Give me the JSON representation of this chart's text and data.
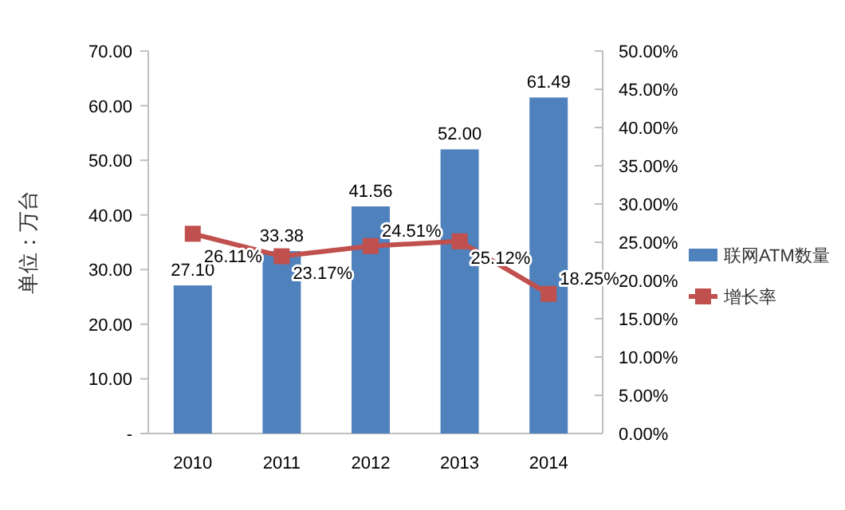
{
  "chart_data": {
    "type": "bar",
    "ylabel": "单位：万台",
    "categories": [
      "2010",
      "2011",
      "2012",
      "2013",
      "2014"
    ],
    "series": [
      {
        "name": "联网ATM数量",
        "color": "#4f81bd",
        "values": [
          27.1,
          33.38,
          41.56,
          52.0,
          61.49
        ],
        "value_labels": [
          "27.10",
          "33.38",
          "41.56",
          "52.00",
          "61.49"
        ]
      },
      {
        "name": "增长率",
        "type": "line",
        "axis": "y2",
        "color": "#c0504d",
        "marker": "square",
        "values": [
          26.11,
          23.17,
          24.51,
          25.12,
          18.25
        ],
        "value_labels": [
          "26.11%",
          "23.17%",
          "24.51%",
          "25.12%",
          "18.25%"
        ]
      }
    ],
    "ylim": [
      0,
      70
    ],
    "yticks": [
      {
        "value": 0,
        "label": "-"
      },
      {
        "value": 10,
        "label": "10.00"
      },
      {
        "value": 20,
        "label": "20.00"
      },
      {
        "value": 30,
        "label": "30.00"
      },
      {
        "value": 40,
        "label": "40.00"
      },
      {
        "value": 50,
        "label": "50.00"
      },
      {
        "value": 60,
        "label": "60.00"
      },
      {
        "value": 70,
        "label": "70.00"
      }
    ],
    "y2lim": [
      0,
      50
    ],
    "y2ticks": [
      {
        "value": 0,
        "label": "0.00%"
      },
      {
        "value": 5,
        "label": "5.00%"
      },
      {
        "value": 10,
        "label": "10.00%"
      },
      {
        "value": 15,
        "label": "15.00%"
      },
      {
        "value": 20,
        "label": "20.00%"
      },
      {
        "value": 25,
        "label": "25.00%"
      },
      {
        "value": 30,
        "label": "30.00%"
      },
      {
        "value": 35,
        "label": "35.00%"
      },
      {
        "value": 40,
        "label": "40.00%"
      },
      {
        "value": 45,
        "label": "45.00%"
      },
      {
        "value": 50,
        "label": "50.00%"
      }
    ],
    "legend": "right"
  }
}
